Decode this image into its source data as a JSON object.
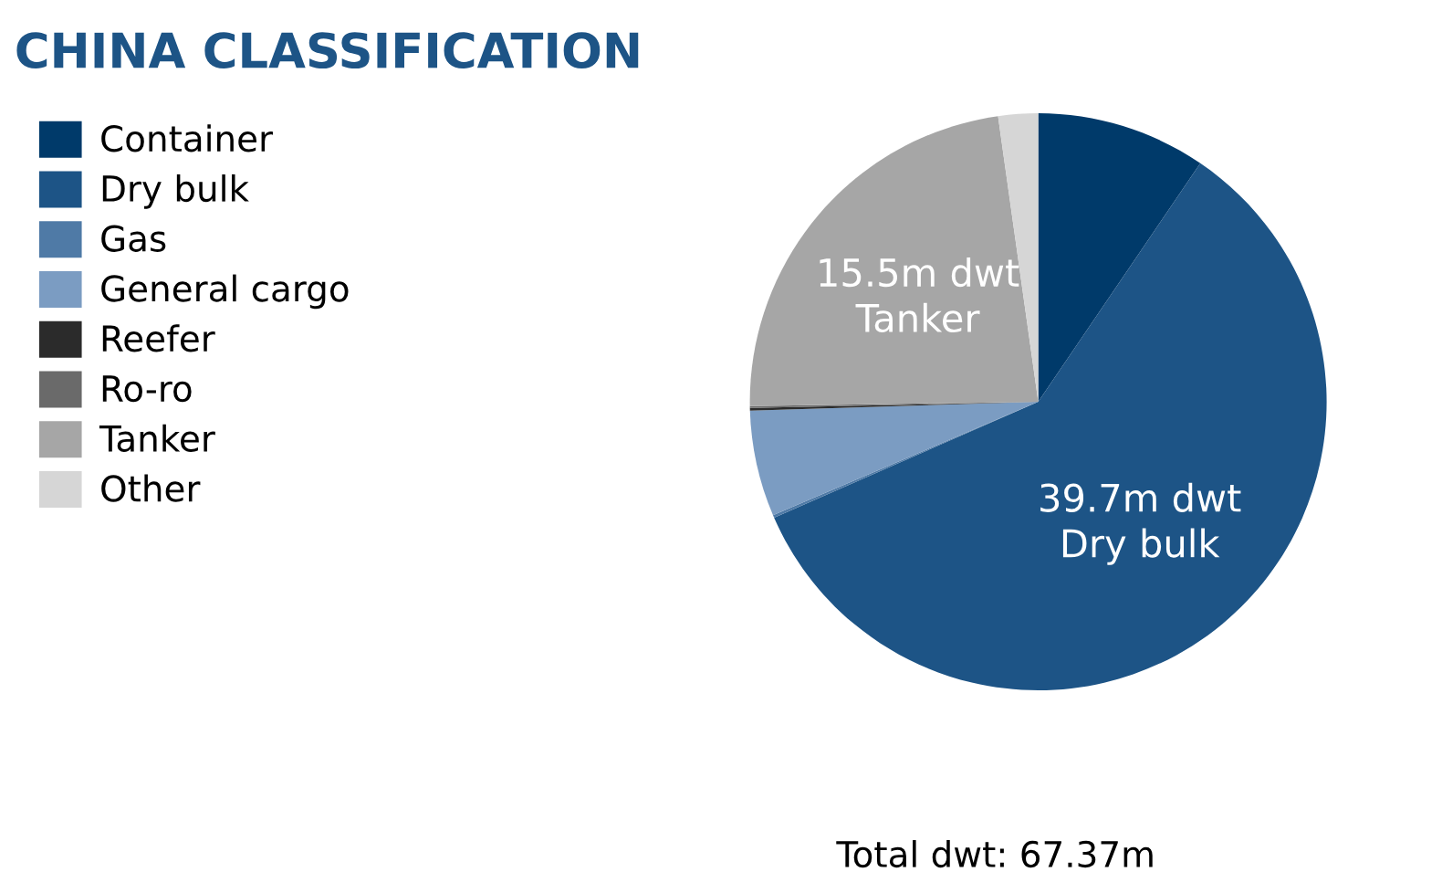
{
  "chart_data": {
    "type": "pie",
    "title": "CHINA CLASSIFICATION",
    "categories": [
      "Container",
      "Dry bulk",
      "Gas",
      "General cargo",
      "Reefer",
      "Ro-ro",
      "Tanker",
      "Other"
    ],
    "values": [
      6.4,
      39.7,
      0.1,
      4.0,
      0.1,
      0.07,
      15.5,
      1.5
    ],
    "colors": [
      "#003a6a",
      "#1d5486",
      "#4f7aa6",
      "#7b9cc2",
      "#2b2b2b",
      "#6a6a6a",
      "#a6a6a6",
      "#d6d6d6"
    ],
    "value_labels": [
      null,
      "39.7m dwt\nDry bulk",
      null,
      null,
      null,
      null,
      "15.5m dwt\nTanker",
      null
    ],
    "legend": "left",
    "annotations": [
      "Total dwt: 67.37m"
    ]
  }
}
